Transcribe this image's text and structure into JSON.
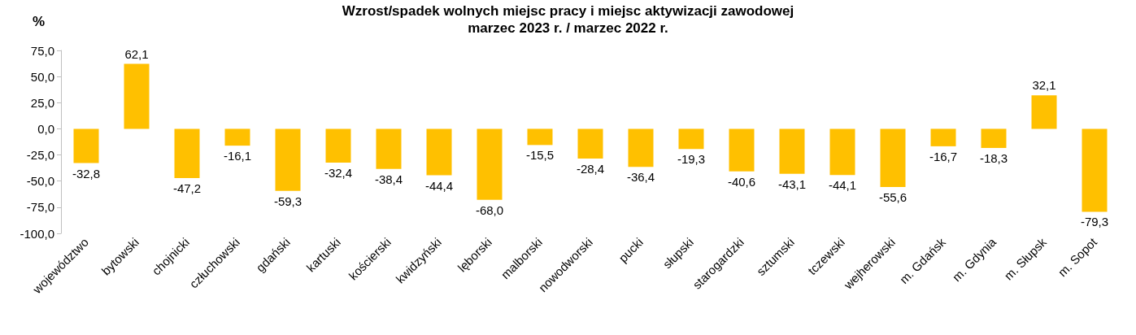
{
  "chart_data": {
    "type": "bar",
    "title": "Wzrost/spadek wolnych miejsc pracy i miejsc aktywizacji zawodowej",
    "subtitle": "marzec 2023 r. / marzec 2022 r.",
    "ylabel": "%",
    "categories": [
      "województwo",
      "bytowski",
      "chojnicki",
      "człuchowski",
      "gdański",
      "kartuski",
      "kościerski",
      "kwidzyński",
      "lęborski",
      "malborski",
      "nowodworski",
      "pucki",
      "słupski",
      "starogardzki",
      "sztumski",
      "tczewski",
      "wejherowski",
      "m. Gdańsk",
      "m. Gdynia",
      "m. Słupsk",
      "m. Sopot"
    ],
    "values": [
      -32.8,
      62.1,
      -47.2,
      -16.1,
      -59.3,
      -32.4,
      -38.4,
      -44.4,
      -68.0,
      -15.5,
      -28.4,
      -36.4,
      -19.3,
      -40.6,
      -43.1,
      -44.1,
      -55.6,
      -16.7,
      -18.3,
      32.1,
      -79.3
    ],
    "value_labels": [
      "-32,8",
      "62,1",
      "-47,2",
      "-16,1",
      "-59,3",
      "-32,4",
      "-38,4",
      "-44,4",
      "-68,0",
      "-15,5",
      "-28,4",
      "-36,4",
      "-19,3",
      "-40,6",
      "-43,1",
      "-44,1",
      "-55,6",
      "-16,7",
      "-18,3",
      "32,1",
      "-79,3"
    ],
    "color": "#ffc000",
    "ylim": [
      -100,
      75
    ],
    "yticks": [
      {
        "value": -100,
        "label": "-100,0"
      },
      {
        "value": -75,
        "label": "-75,0"
      },
      {
        "value": -50,
        "label": "-50,0"
      },
      {
        "value": -25,
        "label": "-25,0"
      },
      {
        "value": 0,
        "label": "0,0"
      },
      {
        "value": 25,
        "label": "25,0"
      },
      {
        "value": 50,
        "label": "50,0"
      },
      {
        "value": 75,
        "label": "75,0"
      }
    ],
    "grid": false
  }
}
